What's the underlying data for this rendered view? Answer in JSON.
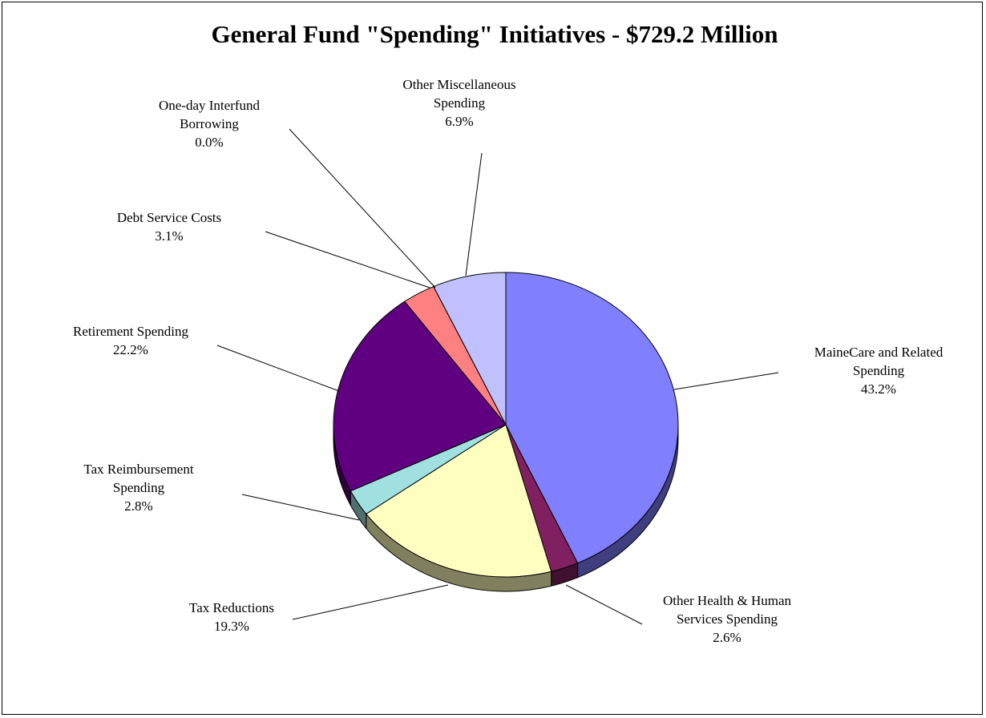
{
  "chart_data": {
    "type": "pie",
    "title": "General Fund \"Spending\" Initiatives - $729.2 Million",
    "slices": [
      {
        "label": [
          "MaineCare and Related",
          "Spending"
        ],
        "value_label": "43.2%",
        "value": 43.2,
        "color": "#8080FF",
        "side": "#3F3F7F"
      },
      {
        "label": [
          "Other Health & Human",
          "Services Spending"
        ],
        "value_label": "2.6%",
        "value": 2.6,
        "color": "#802060",
        "side": "#401030"
      },
      {
        "label": [
          "Tax Reductions"
        ],
        "value_label": "19.3%",
        "value": 19.3,
        "color": "#FFFFC0",
        "side": "#80805F"
      },
      {
        "label": [
          "Tax Reimbursement",
          "Spending"
        ],
        "value_label": "2.8%",
        "value": 2.8,
        "color": "#A0E0E0",
        "side": "#507070"
      },
      {
        "label": [
          "Retirement Spending"
        ],
        "value_label": "22.2%",
        "value": 22.2,
        "color": "#600080",
        "side": "#300040"
      },
      {
        "label": [
          "Debt Service Costs"
        ],
        "value_label": "3.1%",
        "value": 3.1,
        "color": "#FF8080",
        "side": "#7F4040"
      },
      {
        "label": [
          "One-day Interfund",
          "Borrowing"
        ],
        "value_label": "0.0%",
        "value": 0.0,
        "color": "#0080C0",
        "side": "#004060"
      },
      {
        "label": [
          "Other Miscellaneous",
          "Spending"
        ],
        "value_label": "6.9%",
        "value": 6.9,
        "color": "#C0C0FF",
        "side": "#60607F"
      }
    ]
  }
}
